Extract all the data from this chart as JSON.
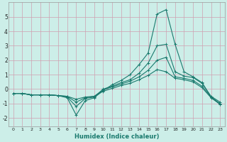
{
  "xlabel": "Humidex (Indice chaleur)",
  "bg_color": "#cceee8",
  "grid_color": "#d0a0b0",
  "line_color": "#1a7a6e",
  "xlim": [
    -0.5,
    23.5
  ],
  "ylim": [
    -2.6,
    6.0
  ],
  "yticks": [
    -2,
    -1,
    0,
    1,
    2,
    3,
    4,
    5
  ],
  "xticks": [
    0,
    1,
    2,
    3,
    4,
    5,
    6,
    7,
    8,
    9,
    10,
    11,
    12,
    13,
    14,
    15,
    16,
    17,
    18,
    19,
    20,
    21,
    22,
    23
  ],
  "lines": [
    {
      "x": [
        0,
        1,
        2,
        3,
        4,
        5,
        6,
        7,
        8,
        9,
        10,
        11,
        12,
        13,
        14,
        15,
        16,
        17,
        18,
        19,
        20,
        21,
        22,
        23
      ],
      "y": [
        -0.3,
        -0.3,
        -0.4,
        -0.4,
        -0.4,
        -0.45,
        -0.6,
        -1.8,
        -0.8,
        -0.6,
        -0.1,
        0.3,
        0.6,
        1.0,
        1.7,
        2.5,
        5.2,
        5.5,
        3.1,
        1.2,
        0.85,
        0.45,
        -0.55,
        -1.05
      ]
    },
    {
      "x": [
        0,
        1,
        2,
        3,
        4,
        5,
        6,
        7,
        8,
        9,
        10,
        11,
        12,
        13,
        14,
        15,
        16,
        17,
        18,
        19,
        20,
        21,
        22,
        23
      ],
      "y": [
        -0.3,
        -0.3,
        -0.4,
        -0.4,
        -0.4,
        -0.45,
        -0.55,
        -1.2,
        -0.65,
        -0.55,
        0.0,
        0.2,
        0.45,
        0.65,
        1.1,
        1.8,
        3.0,
        3.1,
        1.2,
        0.9,
        0.8,
        0.4,
        -0.5,
        -0.9
      ]
    },
    {
      "x": [
        0,
        1,
        2,
        3,
        4,
        5,
        6,
        7,
        8,
        9,
        10,
        11,
        12,
        13,
        14,
        15,
        16,
        17,
        18,
        19,
        20,
        21,
        22,
        23
      ],
      "y": [
        -0.3,
        -0.3,
        -0.4,
        -0.4,
        -0.4,
        -0.45,
        -0.5,
        -0.9,
        -0.6,
        -0.5,
        -0.05,
        0.15,
        0.35,
        0.55,
        0.85,
        1.3,
        2.0,
        2.2,
        0.85,
        0.75,
        0.6,
        0.2,
        -0.55,
        -1.0
      ]
    },
    {
      "x": [
        0,
        1,
        2,
        3,
        4,
        5,
        6,
        7,
        8,
        9,
        10,
        11,
        12,
        13,
        14,
        15,
        16,
        17,
        18,
        19,
        20,
        21,
        22,
        23
      ],
      "y": [
        -0.3,
        -0.3,
        -0.4,
        -0.4,
        -0.4,
        -0.45,
        -0.5,
        -0.7,
        -0.55,
        -0.5,
        -0.15,
        0.05,
        0.25,
        0.4,
        0.65,
        0.95,
        1.35,
        1.2,
        0.75,
        0.65,
        0.5,
        0.1,
        -0.6,
        -1.05
      ]
    }
  ]
}
